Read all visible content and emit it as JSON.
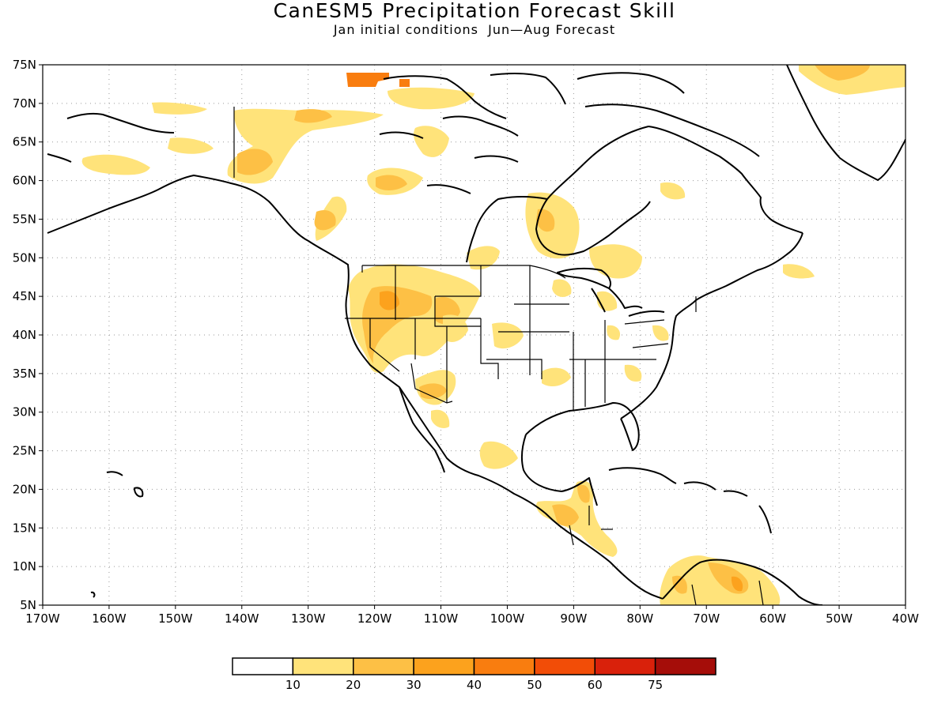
{
  "title": "CanESM5 Precipitation Forecast Skill",
  "subtitle": "Jan initial conditions  Jun—Aug Forecast",
  "map": {
    "lon_range": [
      -170,
      -40
    ],
    "lat_range": [
      5,
      75
    ],
    "lon_ticks": [
      "170W",
      "160W",
      "150W",
      "140W",
      "130W",
      "120W",
      "110W",
      "100W",
      "90W",
      "80W",
      "70W",
      "60W",
      "50W",
      "40W"
    ],
    "lat_ticks": [
      "5N",
      "10N",
      "15N",
      "20N",
      "25N",
      "30N",
      "35N",
      "40N",
      "45N",
      "50N",
      "55N",
      "60N",
      "65N",
      "70N",
      "75N"
    ],
    "grid": "dotted",
    "land_outline_color": "#000000"
  },
  "legend": {
    "labels": [
      "10",
      "20",
      "30",
      "40",
      "50",
      "60",
      "75"
    ],
    "colors": [
      "#ffffff",
      "#ffe37a",
      "#fdc045",
      "#fca21d",
      "#f97d0f",
      "#f24d07",
      "#d9210b",
      "#a50d09"
    ]
  }
}
